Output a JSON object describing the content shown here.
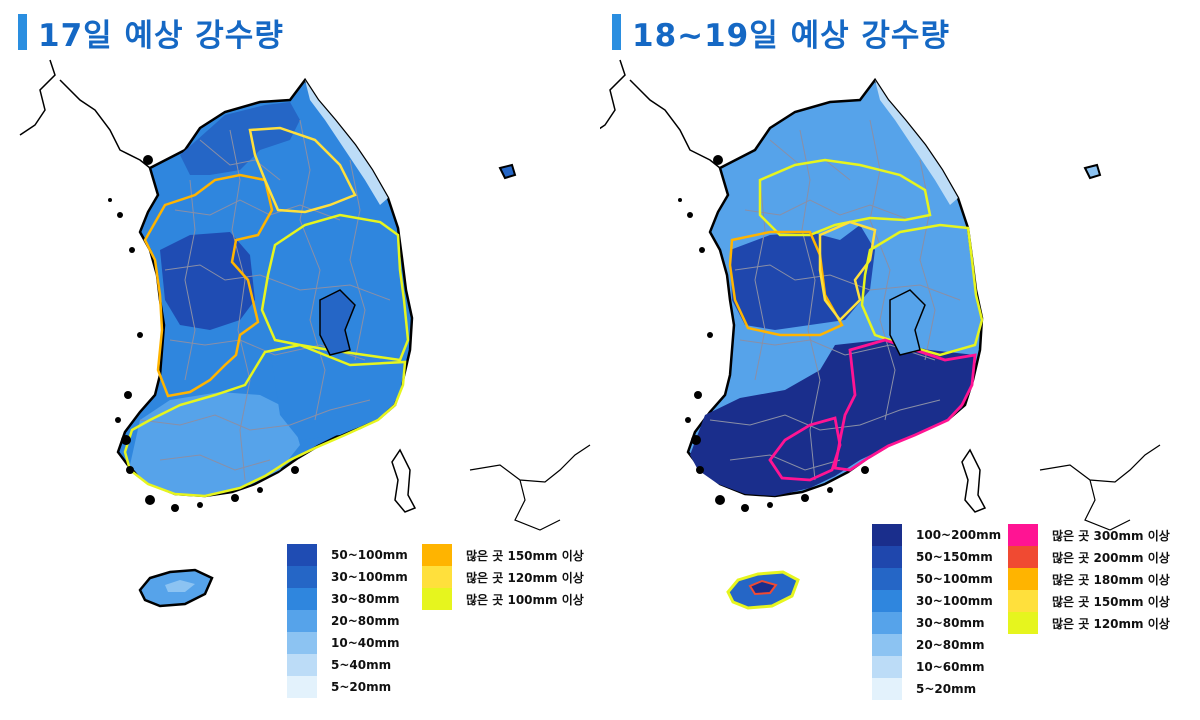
{
  "panels": [
    {
      "title": "17일 예상 강수량",
      "fill_legend": [
        {
          "label": "50~100mm",
          "color": "#1f4cb3"
        },
        {
          "label": "30~100mm",
          "color": "#2566c6"
        },
        {
          "label": "30~80mm",
          "color": "#2f86de"
        },
        {
          "label": "20~80mm",
          "color": "#56a3ea"
        },
        {
          "label": "10~40mm",
          "color": "#8cc3f2"
        },
        {
          "label": "5~40mm",
          "color": "#bcdcf7"
        },
        {
          "label": "5~20mm",
          "color": "#e3f2fc"
        }
      ],
      "outline_legend": [
        {
          "label": "많은 곳 150mm 이상",
          "color": "#ffb400"
        },
        {
          "label": "많은 곳 120mm 이상",
          "color": "#ffe03c"
        },
        {
          "label": "많은 곳 100mm 이상",
          "color": "#e6f51e"
        }
      ]
    },
    {
      "title": "18~19일 예상 강수량",
      "fill_legend": [
        {
          "label": "100~200mm",
          "color": "#1a2e8c"
        },
        {
          "label": "50~150mm",
          "color": "#1f47ad"
        },
        {
          "label": "50~100mm",
          "color": "#2566c6"
        },
        {
          "label": "30~100mm",
          "color": "#2f86de"
        },
        {
          "label": "30~80mm",
          "color": "#56a3ea"
        },
        {
          "label": "20~80mm",
          "color": "#8cc3f2"
        },
        {
          "label": "10~60mm",
          "color": "#bcdcf7"
        },
        {
          "label": "5~20mm",
          "color": "#e3f2fc"
        }
      ],
      "outline_legend": [
        {
          "label": "많은 곳 300mm 이상",
          "color": "#ff1493"
        },
        {
          "label": "많은 곳 200mm 이상",
          "color": "#f04a32"
        },
        {
          "label": "많은 곳 180mm 이상",
          "color": "#ffb400"
        },
        {
          "label": "많은 곳 150mm 이상",
          "color": "#ffe03c"
        },
        {
          "label": "많은 곳 120mm 이상",
          "color": "#e6f51e"
        }
      ]
    }
  ]
}
